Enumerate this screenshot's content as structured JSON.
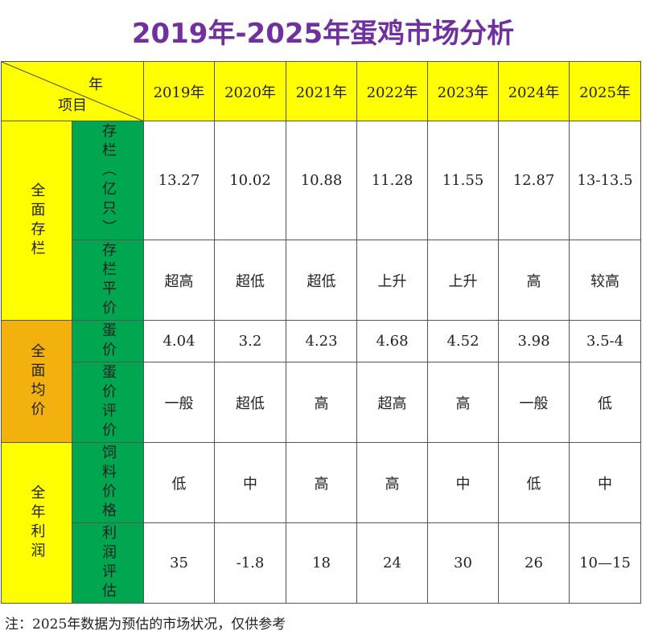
{
  "title": "2019年-2025年蛋鸡市场分析",
  "header": {
    "corner_top": "年",
    "corner_bottom": "项目",
    "years": [
      "2019年",
      "2020年",
      "2021年",
      "2022年",
      "2023年",
      "2024年",
      "2025年"
    ]
  },
  "colors": {
    "title": "#7030a0",
    "header": "#ffff00",
    "group_stock": "#ffff00",
    "group_price": "#f2b10c",
    "group_profit": "#ffff00",
    "subrow": "#00a650"
  },
  "groups": [
    {
      "label": "全面存栏",
      "rows": [
        {
          "label": "存栏（亿只）",
          "values": [
            "13.27",
            "10.02",
            "10.88",
            "11.28",
            "11.55",
            "12.87",
            "13-13.5"
          ]
        },
        {
          "label": "存栏平价",
          "values": [
            "超高",
            "超低",
            "超低",
            "上升",
            "上升",
            "高",
            "较高"
          ]
        }
      ]
    },
    {
      "label": "全面均价",
      "rows": [
        {
          "label": "蛋价",
          "values": [
            "4.04",
            "3.2",
            "4.23",
            "4.68",
            "4.52",
            "3.98",
            "3.5-4"
          ]
        },
        {
          "label": "蛋价评价",
          "values": [
            "一般",
            "超低",
            "高",
            "超高",
            "高",
            "一般",
            "低"
          ]
        }
      ]
    },
    {
      "label": "全年利润",
      "rows": [
        {
          "label": "饲料价格",
          "values": [
            "低",
            "中",
            "高",
            "高",
            "中",
            "低",
            "中"
          ]
        },
        {
          "label": "利润评估",
          "values": [
            "35",
            "-1.8",
            "18",
            "24",
            "30",
            "26",
            "10—15"
          ]
        }
      ]
    }
  ],
  "note": "注：2025年数据为预估的市场状况，仅供参考"
}
